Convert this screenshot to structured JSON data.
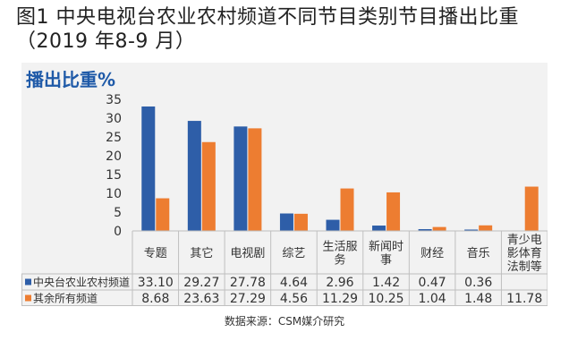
{
  "page": {
    "title": "图1 中央电视台农业农村频道不同节目类别节目播出比重（2019 年8-9 月）",
    "source": "数据来源：CSM媒介研究"
  },
  "chart_data": {
    "type": "bar",
    "title": "播出比重%",
    "categories": [
      "专题",
      "其它",
      "电视剧",
      "综艺",
      "生活服务",
      "新闻时事",
      "财经",
      "音乐",
      "青少电影体育法制等"
    ],
    "category_lines": [
      [
        "专题"
      ],
      [
        "其它"
      ],
      [
        "电视剧"
      ],
      [
        "综艺"
      ],
      [
        "生活服",
        "务"
      ],
      [
        "新闻时",
        "事"
      ],
      [
        "财经"
      ],
      [
        "音乐"
      ],
      [
        "青少电",
        "影体育",
        "法制等"
      ]
    ],
    "series": [
      {
        "name": "中央台农业农村频道",
        "color": "#2e5ea8",
        "values": [
          33.1,
          29.27,
          27.78,
          4.64,
          2.96,
          1.42,
          0.47,
          0.36,
          null
        ],
        "labels": [
          "33.10",
          "29.27",
          "27.78",
          "4.64",
          "2.96",
          "1.42",
          "0.47",
          "0.36",
          ""
        ]
      },
      {
        "name": "其余所有频道",
        "color": "#ed7d31",
        "values": [
          8.68,
          23.63,
          27.29,
          4.56,
          11.29,
          10.25,
          1.04,
          1.48,
          11.78
        ],
        "labels": [
          "8.68",
          "23.63",
          "27.29",
          "4.56",
          "11.29",
          "10.25",
          "1.04",
          "1.48",
          "11.78"
        ]
      }
    ],
    "ylim": [
      0,
      35
    ],
    "yticks": [
      0,
      5,
      10,
      15,
      20,
      25,
      30,
      35
    ],
    "grid": false,
    "legend": "data-table-left"
  }
}
